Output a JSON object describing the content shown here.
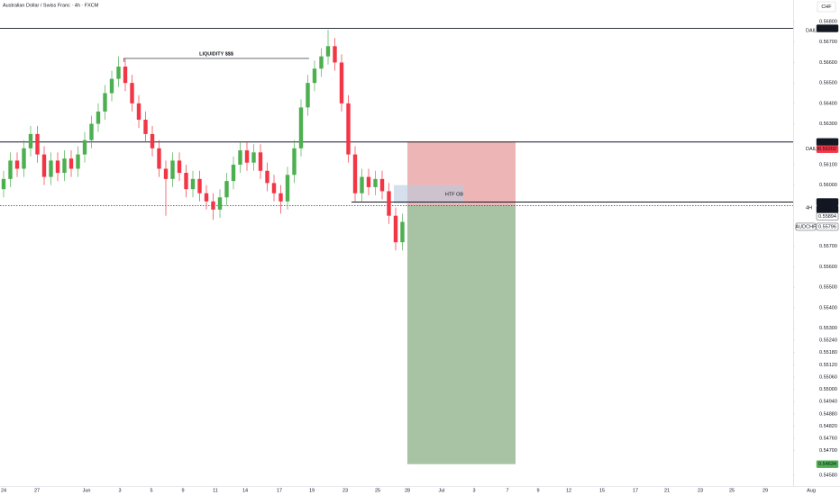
{
  "header": {
    "title": "Australian Dollar / Swiss Franc · 4h · FXCM",
    "currency": "CHF"
  },
  "chart_data": {
    "type": "candlestick",
    "up_color": "#4caf50",
    "down_color": "#f23645",
    "open": [
      0.5598,
      0.5603,
      0.5612,
      0.5608,
      0.5618,
      0.5625,
      0.5615,
      0.5604,
      0.5612,
      0.5606,
      0.5613,
      0.5608,
      0.5615,
      0.5622,
      0.563,
      0.5636,
      0.5645,
      0.5652,
      0.5658,
      0.565,
      0.564,
      0.5632,
      0.5625,
      0.5618,
      0.5608,
      0.5603,
      0.5612,
      0.5606,
      0.5598,
      0.5603,
      0.5596,
      0.5592,
      0.5588,
      0.5594,
      0.5602,
      0.561,
      0.5617,
      0.5611,
      0.5616,
      0.5607,
      0.5601,
      0.5596,
      0.5592,
      0.5605,
      0.5618,
      0.5638,
      0.565,
      0.5657,
      0.5663,
      0.5668,
      0.566,
      0.564,
      0.5615,
      0.5596,
      0.5604,
      0.5599,
      0.5603,
      0.5597,
      0.5585,
      0.5572
    ],
    "high": [
      0.5607,
      0.5616,
      0.5616,
      0.5622,
      0.5629,
      0.5629,
      0.5619,
      0.5616,
      0.5616,
      0.5617,
      0.5617,
      0.5619,
      0.5626,
      0.5634,
      0.564,
      0.5649,
      0.5656,
      0.5663,
      0.5662,
      0.5654,
      0.5644,
      0.5636,
      0.5629,
      0.5622,
      0.5612,
      0.5616,
      0.5616,
      0.561,
      0.5607,
      0.5607,
      0.56,
      0.5596,
      0.5598,
      0.5606,
      0.5614,
      0.5621,
      0.5621,
      0.562,
      0.562,
      0.5611,
      0.5605,
      0.56,
      0.5609,
      0.5622,
      0.5642,
      0.5654,
      0.5661,
      0.5667,
      0.5676,
      0.5672,
      0.5664,
      0.5644,
      0.5619,
      0.5608,
      0.5608,
      0.5607,
      0.5607,
      0.5601,
      0.5589,
      0.5586
    ],
    "low": [
      0.5594,
      0.5599,
      0.5604,
      0.5604,
      0.5614,
      0.5611,
      0.56,
      0.56,
      0.5602,
      0.5602,
      0.5604,
      0.5604,
      0.5611,
      0.5618,
      0.5626,
      0.5632,
      0.5641,
      0.5648,
      0.5646,
      0.5636,
      0.5628,
      0.5621,
      0.5614,
      0.5604,
      0.5585,
      0.5599,
      0.5602,
      0.5594,
      0.5594,
      0.5592,
      0.5588,
      0.5583,
      0.5584,
      0.559,
      0.5598,
      0.5606,
      0.5607,
      0.5607,
      0.5603,
      0.5597,
      0.5592,
      0.5586,
      0.5588,
      0.5601,
      0.5614,
      0.5634,
      0.5646,
      0.5653,
      0.5659,
      0.5656,
      0.5636,
      0.5611,
      0.5592,
      0.5592,
      0.5595,
      0.5595,
      0.5593,
      0.5581,
      0.5568,
      0.5568
    ],
    "close": [
      0.5603,
      0.5612,
      0.5608,
      0.5618,
      0.5625,
      0.5615,
      0.5604,
      0.5612,
      0.5606,
      0.5613,
      0.5608,
      0.5615,
      0.5622,
      0.563,
      0.5636,
      0.5645,
      0.5652,
      0.5658,
      0.565,
      0.564,
      0.5632,
      0.5625,
      0.5618,
      0.5608,
      0.5603,
      0.5612,
      0.5606,
      0.5598,
      0.5603,
      0.5596,
      0.5592,
      0.5588,
      0.5594,
      0.5602,
      0.561,
      0.5617,
      0.5611,
      0.5616,
      0.5607,
      0.5601,
      0.5596,
      0.5592,
      0.5605,
      0.5618,
      0.5638,
      0.565,
      0.5657,
      0.5663,
      0.5668,
      0.566,
      0.564,
      0.5615,
      0.5596,
      0.5604,
      0.5599,
      0.5603,
      0.5597,
      0.5585,
      0.5572,
      0.5582
    ],
    "ylim": [
      0.54527,
      0.56906
    ],
    "yticks": [
      {
        "value": 0.568,
        "label": "0.56800"
      },
      {
        "value": 0.567,
        "label": "0.56700"
      },
      {
        "value": 0.566,
        "label": "0.56600"
      },
      {
        "value": 0.565,
        "label": "0.56500"
      },
      {
        "value": 0.564,
        "label": "0.56400"
      },
      {
        "value": 0.563,
        "label": "0.56300"
      },
      {
        "value": 0.561,
        "label": "0.56100"
      },
      {
        "value": 0.56,
        "label": "0.56000"
      },
      {
        "value": 0.557,
        "label": "0.55700"
      },
      {
        "value": 0.556,
        "label": "0.55600"
      },
      {
        "value": 0.555,
        "label": "0.55500"
      },
      {
        "value": 0.554,
        "label": "0.55400"
      },
      {
        "value": 0.553,
        "label": "0.55300"
      },
      {
        "value": 0.5524,
        "label": "0.55240"
      },
      {
        "value": 0.5518,
        "label": "0.55180"
      },
      {
        "value": 0.5512,
        "label": "0.55120"
      },
      {
        "value": 0.5506,
        "label": "0.55060"
      },
      {
        "value": 0.55,
        "label": "0.55000"
      },
      {
        "value": 0.5494,
        "label": "0.54940"
      },
      {
        "value": 0.5488,
        "label": "0.54880"
      },
      {
        "value": 0.5482,
        "label": "0.54820"
      },
      {
        "value": 0.5476,
        "label": "0.54760"
      },
      {
        "value": 0.547,
        "label": "0.54700"
      },
      {
        "value": 0.5458,
        "label": "0.54580"
      }
    ],
    "xticks": [
      "24",
      "27",
      "Jun",
      "3",
      "5",
      "9",
      "11",
      "14",
      "17",
      "19",
      "23",
      "25",
      "28",
      "Jul",
      "3",
      "7",
      "9",
      "12",
      "15",
      "17",
      "21",
      "23",
      "25",
      "29",
      "Aug"
    ],
    "levels": [
      {
        "value": 0.56767,
        "tag": "DAILY"
      },
      {
        "value": 0.56211
      },
      {
        "value": 0.55917
      },
      {
        "value": 0.55899,
        "tag": "4H"
      }
    ],
    "price_labels": [
      {
        "value": 0.56767,
        "bg": "#131722",
        "fg": "#ffffff"
      },
      {
        "value": 0.56211,
        "bg": "#131722",
        "fg": "#ffffff"
      },
      {
        "value": 0.56202,
        "bg": "#f23645",
        "fg": "#ffffff",
        "tag": "DAILY"
      },
      {
        "value": 0.55917,
        "bg": "#131722",
        "fg": "#ffffff"
      },
      {
        "value": 0.55899,
        "bg": "#131722",
        "fg": "#ffffff"
      },
      {
        "value": 0.55894,
        "bg": "#ffffff",
        "fg": "#131722"
      },
      {
        "value": 0.55796,
        "bg": "#ffffff",
        "fg": "#131722",
        "name": "AUDCHF"
      },
      {
        "value": 0.54634,
        "bg": "#4caf50",
        "fg": "#ffffff"
      }
    ],
    "position": {
      "entry": 0.55899,
      "stop": 0.56211,
      "target": 0.54634,
      "stop_color": "#e8a3a3",
      "target_color": "#9dbd9a"
    },
    "zone": {
      "label": "HTF OB",
      "top": 0.56,
      "bottom": 0.5591,
      "color": "#b9cbe0"
    },
    "liquidity": {
      "label": "LIQUIDITY $$$",
      "value": 0.5662
    }
  }
}
